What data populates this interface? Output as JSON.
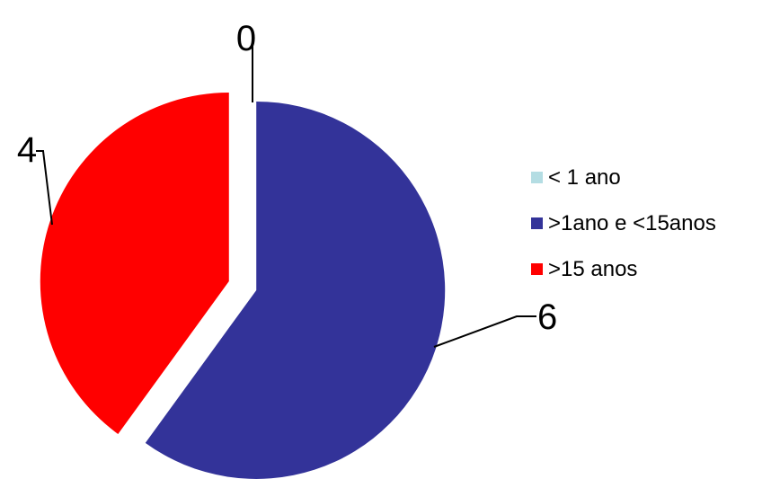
{
  "chart_data": {
    "type": "pie",
    "categories": [
      "< 1 ano",
      ">1ano e <15anos",
      ">15 anos"
    ],
    "values": [
      0,
      6,
      4
    ],
    "value_labels": [
      "0",
      "6",
      "4"
    ],
    "colors": [
      "#B4DDE3",
      "#333399",
      "#FF0000"
    ],
    "exploded": true,
    "legend": "right"
  }
}
